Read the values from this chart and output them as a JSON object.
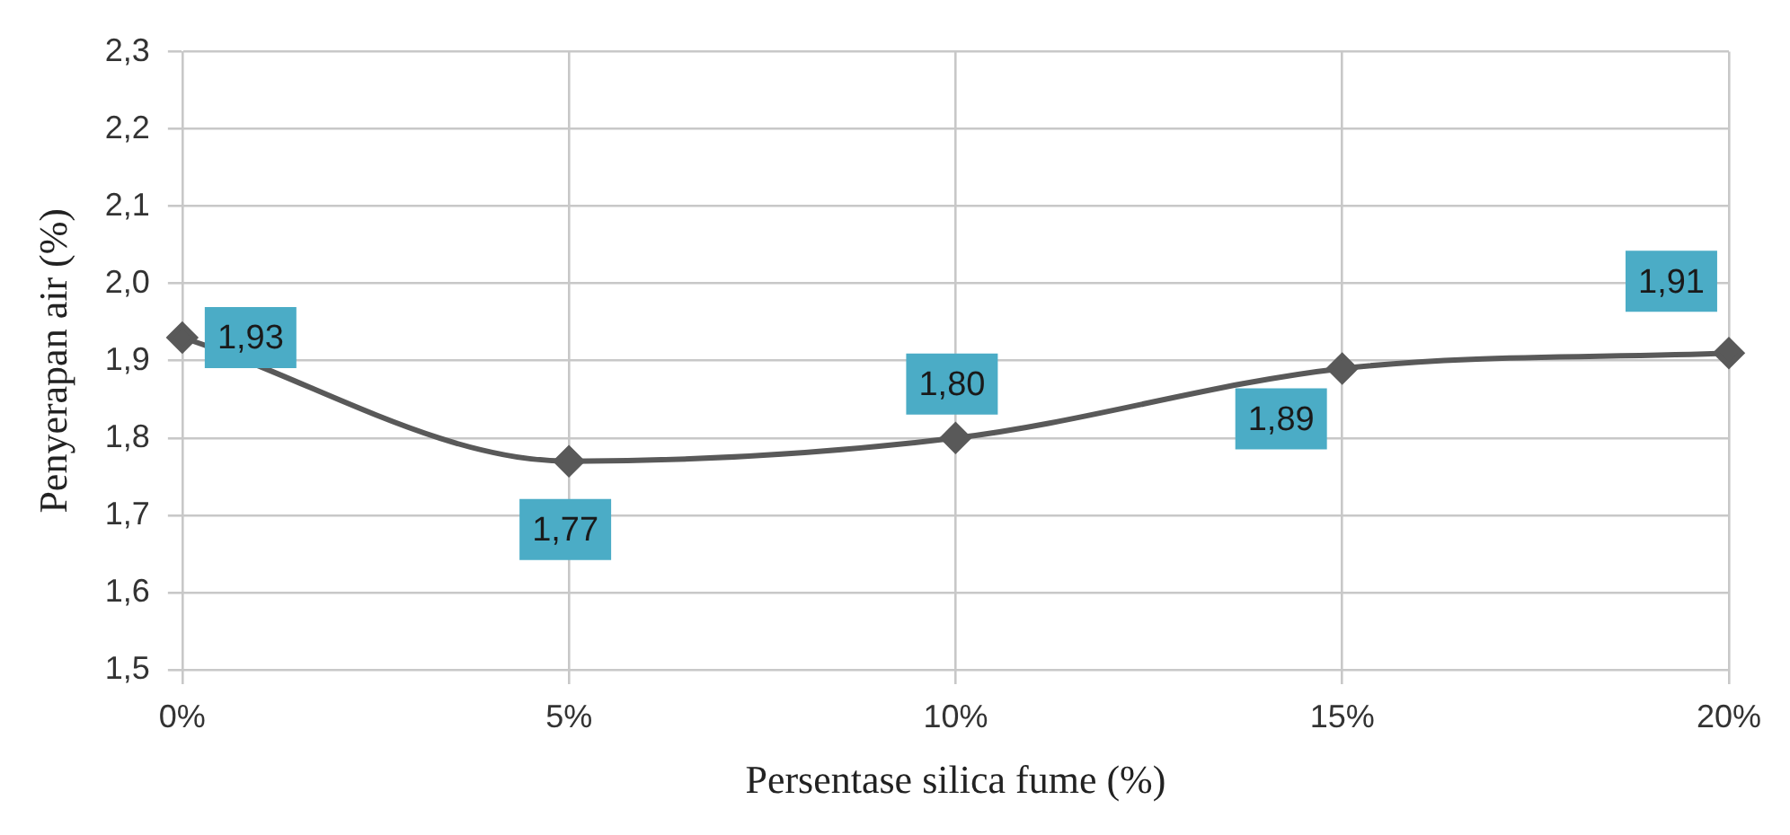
{
  "chart_data": {
    "type": "line",
    "xlabel": "Persentase silica fume (%)",
    "ylabel": "Penyerapan air (%)",
    "categories": [
      "0%",
      "5%",
      "10%",
      "15%",
      "20%"
    ],
    "series": [
      {
        "color": "#595959",
        "values": [
          1.93,
          1.77,
          1.8,
          1.89,
          1.91
        ],
        "value_labels": [
          "1,93",
          "1,77",
          "1,80",
          "1,89",
          "1,91"
        ]
      }
    ],
    "ylim": [
      1.5,
      2.3
    ],
    "yticks": [
      {
        "value": 1.5,
        "label": "1,5"
      },
      {
        "value": 1.6,
        "label": "1,6"
      },
      {
        "value": 1.7,
        "label": "1,7"
      },
      {
        "value": 1.8,
        "label": "1,8"
      },
      {
        "value": 1.9,
        "label": "1,9"
      },
      {
        "value": 2.0,
        "label": "2,0"
      },
      {
        "value": 2.1,
        "label": "2,1"
      },
      {
        "value": 2.2,
        "label": "2,2"
      },
      {
        "value": 2.3,
        "label": "2,3"
      }
    ],
    "grid": true,
    "legend": false,
    "marker": "diamond",
    "line_style": "solid"
  }
}
